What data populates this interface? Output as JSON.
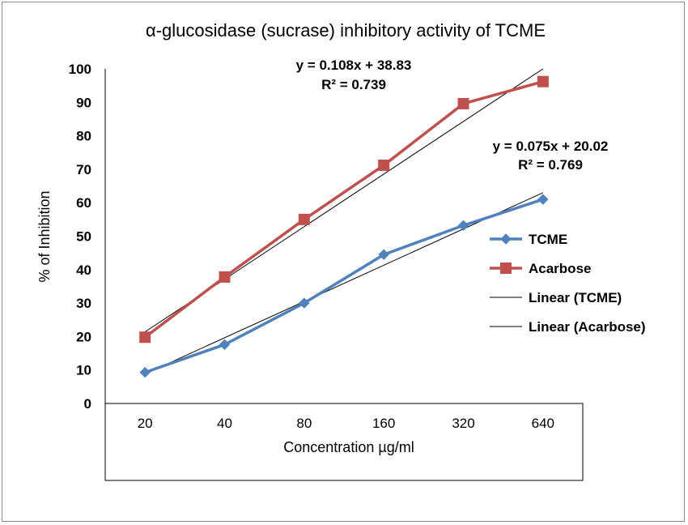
{
  "chart_data": {
    "type": "line",
    "title": "α-glucosidase (sucrase) inhibitory activity of TCME",
    "xlabel": "Concentration  µg/ml",
    "ylabel": "% of Inhibition",
    "categories": [
      "20",
      "40",
      "80",
      "160",
      "320",
      "640"
    ],
    "ylim": [
      0,
      100
    ],
    "yticks": [
      0,
      10,
      20,
      30,
      40,
      50,
      60,
      70,
      80,
      90,
      100
    ],
    "grid": false,
    "legend_position": "right",
    "series": [
      {
        "name": "TCME",
        "values": [
          9.3,
          17.6,
          30.0,
          44.5,
          53.2,
          61.0
        ],
        "color": "#4F81BD",
        "marker": "diamond"
      },
      {
        "name": "Acarbose",
        "values": [
          19.8,
          37.8,
          55.0,
          71.2,
          89.6,
          96.2
        ],
        "color": "#C0504D",
        "marker": "square"
      }
    ],
    "trendlines": [
      {
        "name": "Linear (TCME)",
        "of": "TCME",
        "color": "#000000",
        "equation": "y = 0.075x + 20.02",
        "r2": "R² = 0.769",
        "start": 8.8,
        "end": 63.0
      },
      {
        "name": "Linear (Acarbose)",
        "of": "Acarbose",
        "color": "#000000",
        "equation": "y = 0.108x + 38.83",
        "r2": "R² = 0.739",
        "start": 21.4,
        "end": 100.0
      }
    ]
  }
}
